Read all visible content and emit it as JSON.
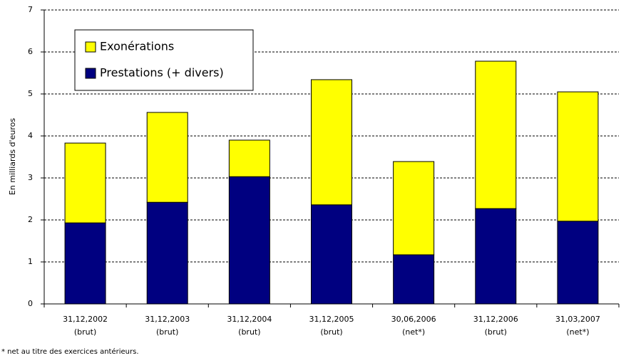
{
  "chart_data": {
    "type": "stacked_bar",
    "y_label": "En milliards d'euros",
    "categories": [
      [
        "31,12,2002",
        "(brut)"
      ],
      [
        "31,12,2003",
        "(brut)"
      ],
      [
        "31,12,2004",
        "(brut)"
      ],
      [
        "31,12,2005",
        "(brut)"
      ],
      [
        "30,06,2006",
        "(net*)"
      ],
      [
        "31,12,2006",
        "(brut)"
      ],
      [
        "31,03,2007",
        "(net*)"
      ]
    ],
    "series": [
      {
        "name": "Prestations (+ divers)",
        "color": "#000080",
        "values": [
          1.93,
          2.42,
          3.03,
          2.36,
          1.17,
          2.27,
          1.97
        ]
      },
      {
        "name": "Exonérations",
        "color": "#ffff00",
        "values": [
          1.9,
          2.14,
          0.87,
          2.98,
          2.22,
          3.51,
          3.08
        ]
      }
    ],
    "ylim": [
      0,
      7
    ],
    "yticks": [
      0,
      1,
      2,
      3,
      4,
      5,
      6,
      7
    ],
    "grid": true,
    "legend": "upper left",
    "footnote": "* net au titre des exercices antérieurs."
  }
}
